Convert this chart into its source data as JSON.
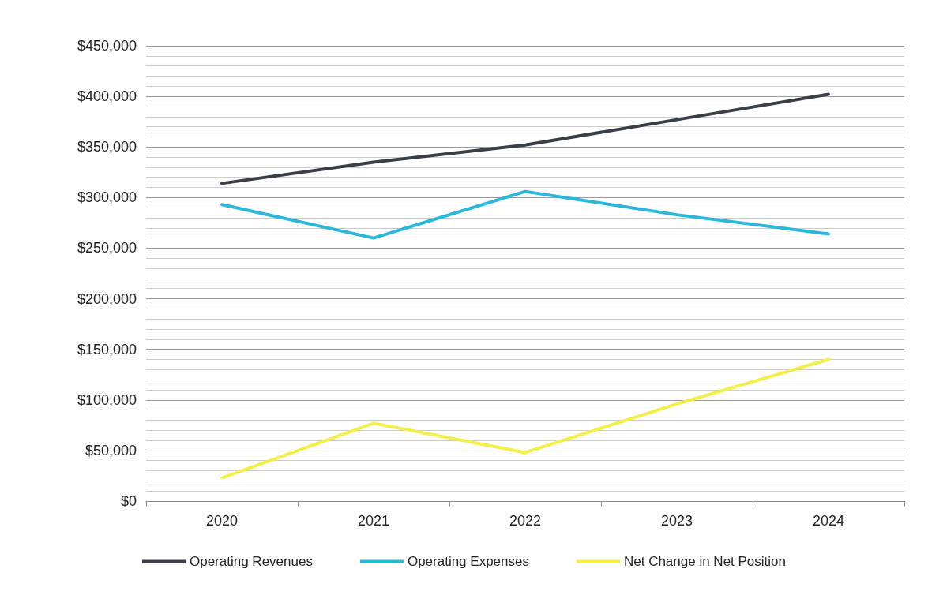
{
  "chart_data": {
    "type": "line",
    "categories": [
      "2020",
      "2021",
      "2022",
      "2023",
      "2024"
    ],
    "series": [
      {
        "name": "Operating Revenues",
        "color": "#3a3f47",
        "values": [
          314000,
          335000,
          352000,
          377000,
          402000
        ]
      },
      {
        "name": "Operating Expenses",
        "color": "#2bb7dc",
        "values": [
          293000,
          260000,
          306000,
          283000,
          264000
        ]
      },
      {
        "name": "Net Change in Net Position",
        "color": "#f3ef4a",
        "values": [
          23000,
          77000,
          48000,
          96000,
          140000
        ]
      }
    ],
    "ylim": [
      0,
      450000
    ],
    "yticks": [
      {
        "value": 0,
        "label": "$0"
      },
      {
        "value": 50000,
        "label": "$50,000"
      },
      {
        "value": 100000,
        "label": "$100,000"
      },
      {
        "value": 150000,
        "label": "$150,000"
      },
      {
        "value": 200000,
        "label": "$200,000"
      },
      {
        "value": 250000,
        "label": "$250,000"
      },
      {
        "value": 300000,
        "label": "$300,000"
      },
      {
        "value": 350000,
        "label": "$350,000"
      },
      {
        "value": 400000,
        "label": "$400,000"
      },
      {
        "value": 450000,
        "label": "$450,000"
      }
    ],
    "grid": "y",
    "legend": "bottom",
    "marker": "none",
    "line_style": "solid"
  }
}
